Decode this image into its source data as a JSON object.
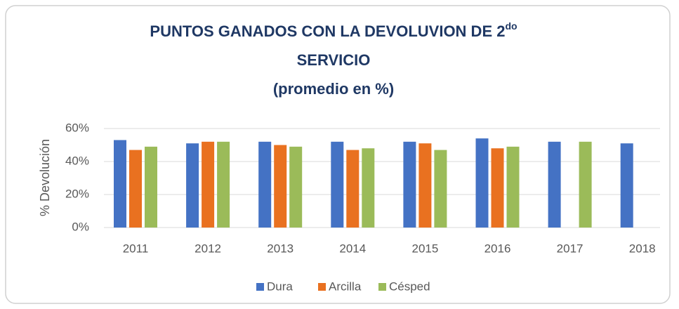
{
  "chart_data": {
    "type": "bar",
    "title": "PUNTOS GANADOS CON LA DEVOLUVION DE 2",
    "title_superscript": "do",
    "title_line2": "SERVICIO",
    "subtitle": "(promedio en %)",
    "y_label": "% Devolución",
    "categories": [
      "2011",
      "2012",
      "2013",
      "2014",
      "2015",
      "2016",
      "2017",
      "2018"
    ],
    "series": [
      {
        "name": "Dura",
        "color": "#4472c4",
        "values": [
          53,
          51,
          52,
          52,
          52,
          54,
          52,
          51
        ]
      },
      {
        "name": "Arcilla",
        "color": "#e97120",
        "values": [
          47,
          52,
          50,
          47,
          51,
          48,
          null,
          null
        ]
      },
      {
        "name": "Césped",
        "color": "#9bbb59",
        "values": [
          49,
          52,
          49,
          48,
          47,
          49,
          52,
          null
        ]
      }
    ],
    "ylim": [
      0,
      60
    ],
    "yticks": [
      {
        "value": 0,
        "label": "0%"
      },
      {
        "value": 20,
        "label": "20%"
      },
      {
        "value": 40,
        "label": "40%"
      },
      {
        "value": 60,
        "label": "60%"
      }
    ],
    "grid": true,
    "legend": "bottom"
  }
}
